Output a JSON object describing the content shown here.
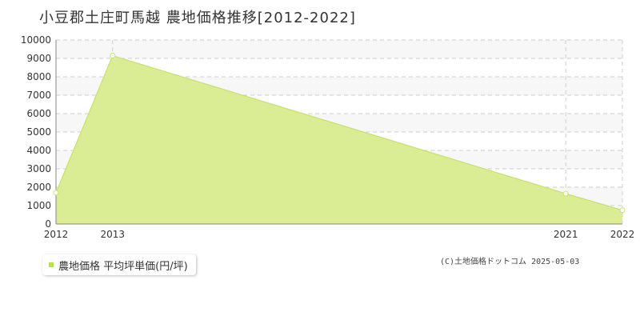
{
  "chart_data": {
    "type": "area",
    "title": "小豆郡土庄町馬越 農地価格推移[2012-2022]",
    "x": [
      "2012",
      "2013",
      "2021",
      "2022"
    ],
    "x_numeric": [
      2012,
      2013,
      2021,
      2022
    ],
    "series": [
      {
        "name": "農地価格 平均坪単価(円/坪)",
        "values": [
          1700,
          9150,
          1650,
          750
        ]
      }
    ],
    "yticks": [
      0,
      1000,
      2000,
      3000,
      4000,
      5000,
      6000,
      7000,
      8000,
      9000,
      10000
    ],
    "ylim": [
      0,
      10000
    ],
    "xlim": [
      2012,
      2022
    ],
    "grid": true,
    "legend_position": "bottom-left",
    "colors": {
      "fill": "#dbed94",
      "line": "#c6e35f",
      "marker_fill": "#ffffff",
      "grid": "#cccccc",
      "axis": "#888888",
      "legend_marker": "#b5e04a"
    }
  },
  "copyright": "(C)土地価格ドットコム 2025-05-03"
}
